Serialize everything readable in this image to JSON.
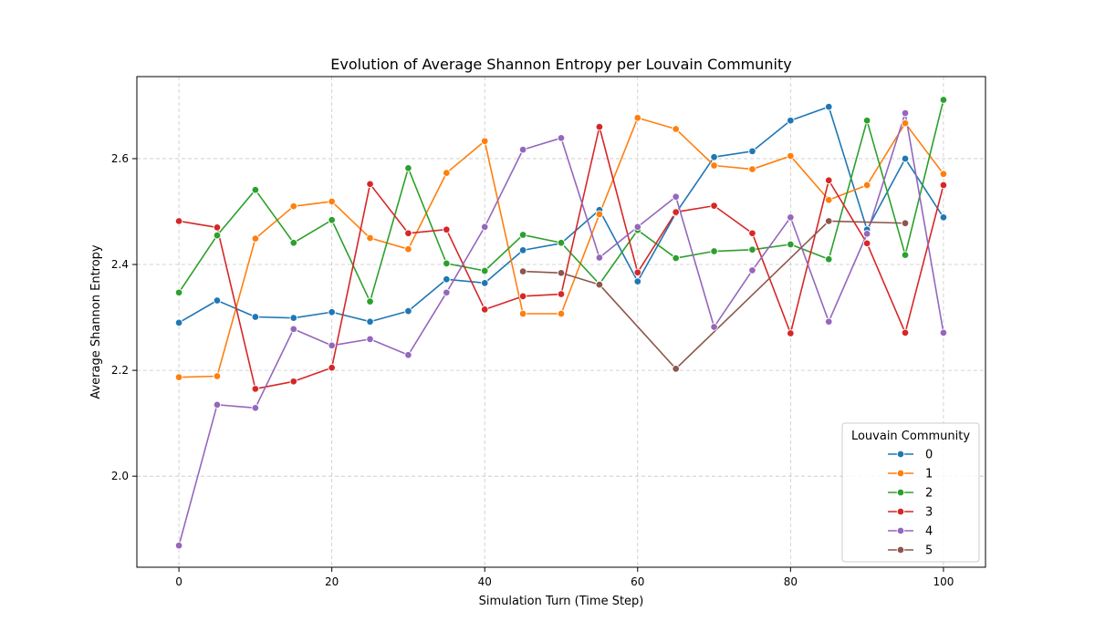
{
  "chart_data": {
    "type": "line",
    "title": "Evolution of Average Shannon Entropy per Louvain Community",
    "xlabel": "Simulation Turn (Time Step)",
    "ylabel": "Average Shannon Entropy",
    "xlim": [
      -5.5,
      105.5
    ],
    "ylim": [
      1.828,
      2.755
    ],
    "xticks": [
      0,
      20,
      40,
      60,
      80,
      100
    ],
    "yticks": [
      2.0,
      2.2,
      2.4,
      2.6
    ],
    "xtick_labels": [
      "0",
      "20",
      "40",
      "60",
      "80",
      "100"
    ],
    "ytick_labels": [
      "2.0",
      "2.2",
      "2.4",
      "2.6"
    ],
    "grid": true,
    "legend": {
      "title": "Louvain Community",
      "placement": "lower-right"
    },
    "series": [
      {
        "name": "0",
        "color": "#1f77b4",
        "x": [
          0,
          5,
          10,
          15,
          20,
          25,
          30,
          35,
          40,
          45,
          50,
          55,
          60,
          65,
          70,
          75,
          80,
          85,
          90,
          95,
          100
        ],
        "y": [
          2.29,
          2.332,
          2.301,
          2.299,
          2.31,
          2.292,
          2.312,
          2.372,
          2.365,
          2.427,
          2.44,
          2.503,
          2.368,
          2.497,
          2.603,
          2.614,
          2.672,
          2.698,
          2.466,
          2.6,
          2.489
        ]
      },
      {
        "name": "1",
        "color": "#ff7f0e",
        "x": [
          0,
          5,
          10,
          15,
          20,
          25,
          30,
          35,
          40,
          45,
          50,
          55,
          60,
          65,
          70,
          75,
          80,
          85,
          90,
          95,
          100
        ],
        "y": [
          2.187,
          2.189,
          2.449,
          2.51,
          2.519,
          2.45,
          2.429,
          2.573,
          2.633,
          2.307,
          2.307,
          2.495,
          2.677,
          2.656,
          2.587,
          2.58,
          2.605,
          2.522,
          2.55,
          2.667,
          2.571
        ]
      },
      {
        "name": "2",
        "color": "#2ca02c",
        "x": [
          0,
          5,
          10,
          15,
          20,
          25,
          30,
          35,
          40,
          45,
          50,
          55,
          60,
          65,
          70,
          75,
          80,
          85,
          90,
          95,
          100
        ],
        "y": [
          2.347,
          2.455,
          2.541,
          2.441,
          2.484,
          2.33,
          2.582,
          2.402,
          2.388,
          2.456,
          2.441,
          2.363,
          2.465,
          2.412,
          2.425,
          2.428,
          2.438,
          2.41,
          2.672,
          2.418,
          2.711
        ]
      },
      {
        "name": "3",
        "color": "#d62728",
        "x": [
          0,
          5,
          10,
          15,
          20,
          25,
          30,
          35,
          40,
          45,
          50,
          55,
          60,
          65,
          70,
          75,
          80,
          85,
          90,
          95,
          100
        ],
        "y": [
          2.482,
          2.47,
          2.165,
          2.179,
          2.205,
          2.552,
          2.459,
          2.466,
          2.315,
          2.34,
          2.344,
          2.66,
          2.385,
          2.499,
          2.511,
          2.459,
          2.27,
          2.559,
          2.44,
          2.271,
          2.55
        ]
      },
      {
        "name": "4",
        "color": "#9467bd",
        "x": [
          0,
          5,
          10,
          15,
          20,
          25,
          30,
          35,
          40,
          45,
          50,
          55,
          60,
          65,
          70,
          75,
          80,
          85,
          90,
          95,
          100
        ],
        "y": [
          1.869,
          2.135,
          2.129,
          2.278,
          2.247,
          2.259,
          2.229,
          2.347,
          2.471,
          2.617,
          2.639,
          2.413,
          2.471,
          2.528,
          2.282,
          2.389,
          2.489,
          2.292,
          2.458,
          2.686,
          2.271
        ]
      },
      {
        "name": "5",
        "color": "#8c564b",
        "x": [
          45,
          50,
          55,
          65,
          85,
          95
        ],
        "y": [
          2.387,
          2.384,
          2.362,
          2.203,
          2.482,
          2.478
        ]
      }
    ]
  }
}
